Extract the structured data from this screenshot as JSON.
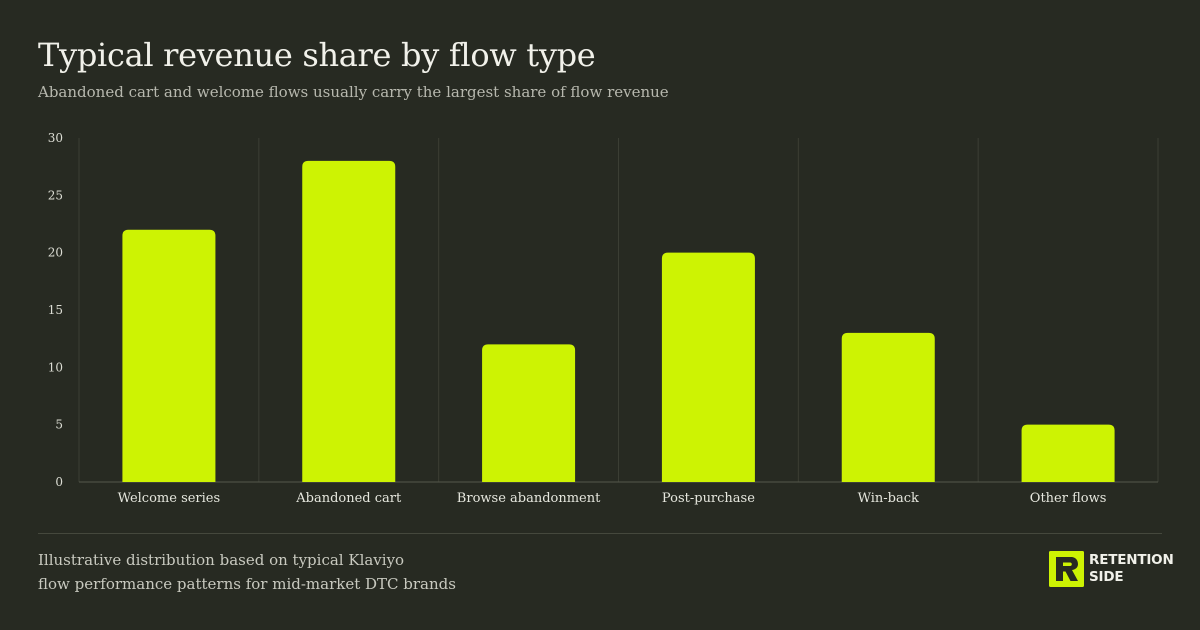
{
  "header": {
    "title": "Typical revenue share by flow type",
    "subtitle": "Abandoned cart and welcome flows usually carry the largest share of flow revenue"
  },
  "chart_data": {
    "type": "bar",
    "title": "Typical revenue share by flow type",
    "subtitle": "Abandoned cart and welcome flows usually carry the largest share of flow revenue",
    "categories": [
      "Welcome series",
      "Abandoned cart",
      "Browse abandonment",
      "Post-purchase",
      "Win-back",
      "Other flows"
    ],
    "values": [
      22,
      28,
      12,
      20,
      13,
      5
    ],
    "xlabel": "",
    "ylabel": "",
    "ylim": [
      0,
      30
    ],
    "yticks": [
      0,
      5,
      10,
      15,
      20,
      25,
      30
    ],
    "grid": "vertical separators between categories",
    "legend": "none",
    "bar_color": "#cdf303"
  },
  "footer": {
    "note_line1": "Illustrative distribution based on typical Klaviyo",
    "note_line2": "flow performance patterns for mid-market DTC brands"
  },
  "brand": {
    "line1": "RETENTION",
    "line2": "SIDE",
    "accent": "#cdf303"
  },
  "colors": {
    "background": "#272a22",
    "bar": "#cdf303",
    "text": "#f1f1ea"
  }
}
